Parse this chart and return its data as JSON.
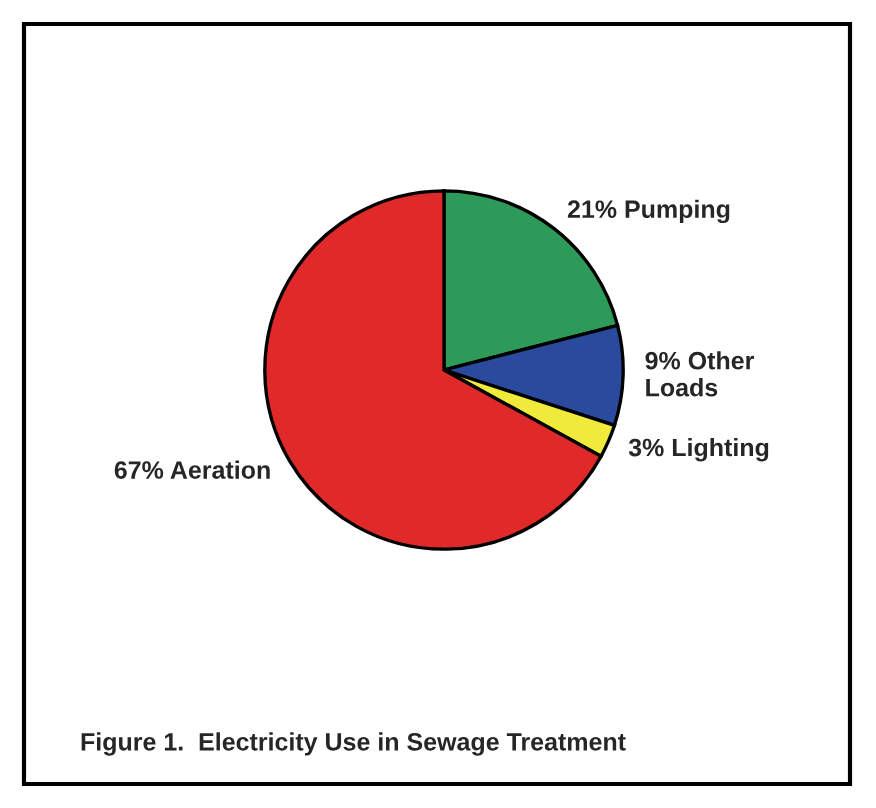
{
  "chart_data": {
    "type": "pie",
    "categories": [
      "21% Pumping",
      "9% Other\nLoads",
      "3% Lighting",
      "67% Aeration"
    ],
    "values": [
      21,
      9,
      3,
      67
    ],
    "colors": [
      "#2e9a5a",
      "#2a4a9e",
      "#f0ea3a",
      "#e02a2a"
    ],
    "annotations": [
      "Figure 1.  Electricity Use in Sewage Treatment"
    ]
  }
}
